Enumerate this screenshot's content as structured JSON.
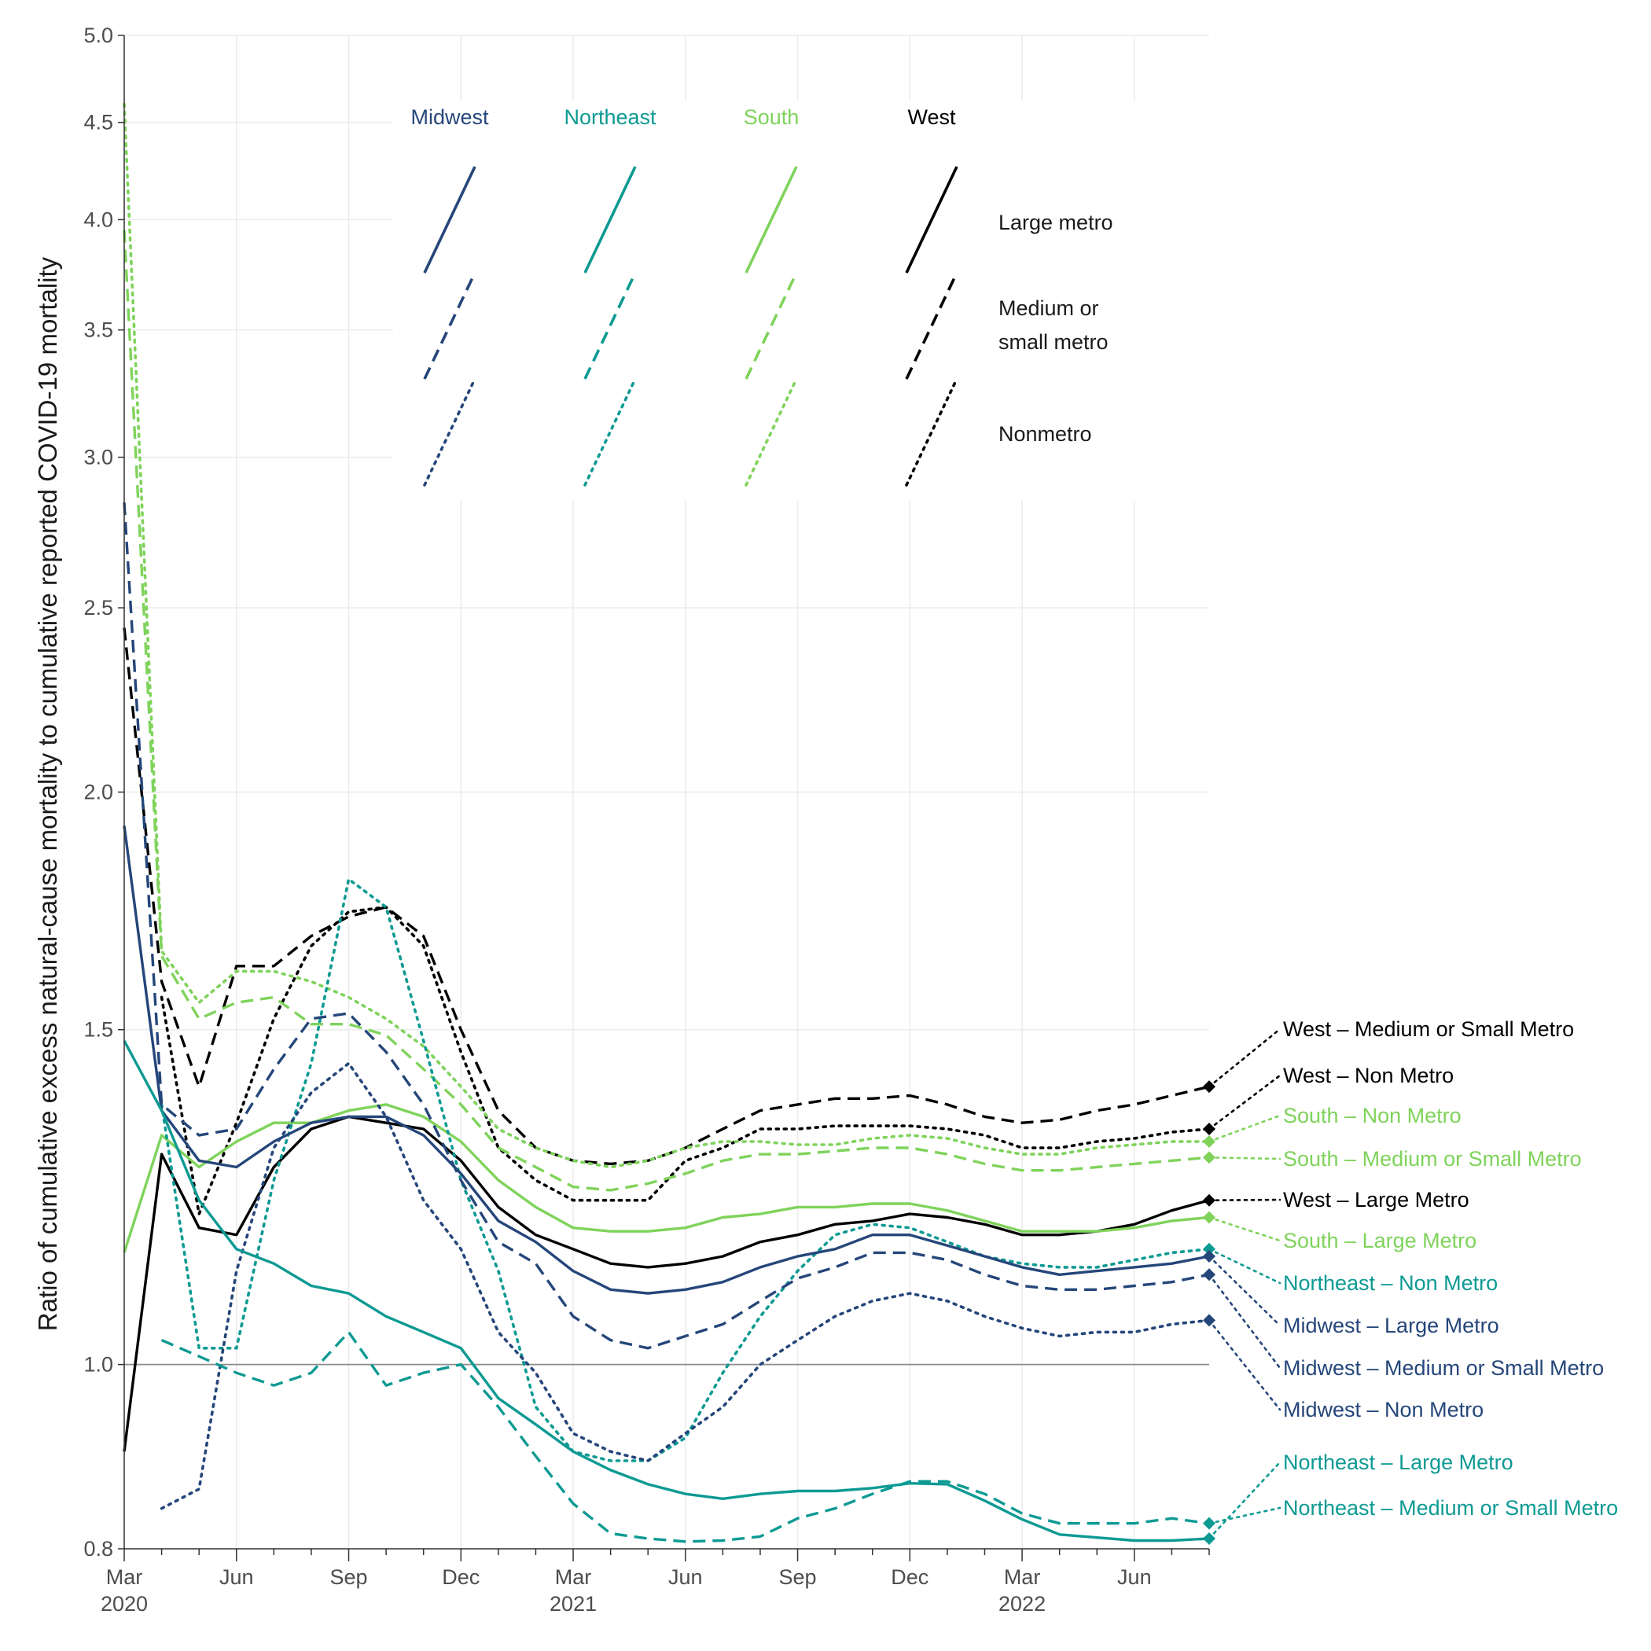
{
  "chart_data": {
    "type": "line",
    "title": "",
    "ylabel": "Ratio of cumulative excess natural-cause mortality to cumulative reported COVID-19 mortality",
    "xlabel": "",
    "y_scale": "log",
    "ylim": [
      0.8,
      5.0
    ],
    "y_ticks": [
      "0.8",
      "1.0",
      "1.5",
      "2.0",
      "2.5",
      "3.0",
      "3.5",
      "4.0",
      "4.5",
      "5.0"
    ],
    "y_tick_values": [
      0.8,
      1.0,
      1.5,
      2.0,
      2.5,
      3.0,
      3.5,
      4.0,
      4.5,
      5.0
    ],
    "reference_line": 1.0,
    "grid": true,
    "x_ticks": [
      {
        "month": 0,
        "label": "Mar",
        "year": "2020"
      },
      {
        "month": 3,
        "label": "Jun",
        "year": ""
      },
      {
        "month": 6,
        "label": "Sep",
        "year": ""
      },
      {
        "month": 9,
        "label": "Dec",
        "year": ""
      },
      {
        "month": 12,
        "label": "Mar",
        "year": "2021"
      },
      {
        "month": 15,
        "label": "Jun",
        "year": ""
      },
      {
        "month": 18,
        "label": "Sep",
        "year": ""
      },
      {
        "month": 21,
        "label": "Dec",
        "year": ""
      },
      {
        "month": 24,
        "label": "Mar",
        "year": "2022"
      },
      {
        "month": 27,
        "label": "Jun",
        "year": ""
      }
    ],
    "legend": {
      "placement": "top-center inside plot",
      "regions": [
        "Midwest",
        "Northeast",
        "South",
        "West"
      ],
      "types": [
        "Large metro",
        "Medium or\nsmall metro",
        "Nonmetro"
      ]
    },
    "colors": {
      "Midwest": "#25467a",
      "Northeast": "#0d9a93",
      "South": "#7fd35b",
      "West": "#000000"
    },
    "dash_styles": {
      "Large metro": "solid",
      "Medium or small metro": "dashed",
      "Nonmetro": "dotted"
    },
    "x_unit": "months since Mar 2020",
    "series": [
      {
        "name": "West – Medium or Small Metro",
        "region": "West",
        "type": "Medium or small metro",
        "start": 0,
        "values": [
          2.44,
          1.59,
          1.4,
          1.62,
          1.62,
          1.68,
          1.72,
          1.74,
          1.68,
          1.5,
          1.36,
          1.3,
          1.28,
          1.275,
          1.28,
          1.3,
          1.33,
          1.36,
          1.37,
          1.38,
          1.38,
          1.385,
          1.37,
          1.35,
          1.34,
          1.345,
          1.36,
          1.37,
          1.385,
          1.4
        ]
      },
      {
        "name": "West – Non Metro",
        "region": "West",
        "type": "Nonmetro",
        "start": 1,
        "values": [
          1.56,
          1.2,
          1.34,
          1.52,
          1.66,
          1.73,
          1.74,
          1.66,
          1.46,
          1.3,
          1.25,
          1.22,
          1.22,
          1.22,
          1.28,
          1.3,
          1.33,
          1.33,
          1.335,
          1.335,
          1.335,
          1.33,
          1.32,
          1.3,
          1.3,
          1.31,
          1.315,
          1.325,
          1.33
        ]
      },
      {
        "name": "South – Non Metro",
        "region": "South",
        "type": "Nonmetro",
        "start": 0,
        "values": [
          4.6,
          1.65,
          1.55,
          1.61,
          1.61,
          1.59,
          1.56,
          1.52,
          1.47,
          1.4,
          1.33,
          1.3,
          1.28,
          1.27,
          1.28,
          1.3,
          1.31,
          1.31,
          1.305,
          1.305,
          1.315,
          1.32,
          1.315,
          1.3,
          1.29,
          1.29,
          1.3,
          1.305,
          1.31,
          1.31
        ]
      },
      {
        "name": "South – Medium or Small Metro",
        "region": "South",
        "type": "Medium or small metro",
        "start": 0,
        "values": [
          3.95,
          1.64,
          1.52,
          1.55,
          1.56,
          1.51,
          1.51,
          1.49,
          1.43,
          1.37,
          1.3,
          1.27,
          1.24,
          1.235,
          1.245,
          1.26,
          1.28,
          1.29,
          1.29,
          1.295,
          1.3,
          1.3,
          1.29,
          1.275,
          1.265,
          1.265,
          1.27,
          1.275,
          1.28,
          1.285
        ]
      },
      {
        "name": "West – Large Metro",
        "region": "West",
        "type": "Large metro",
        "start": 0,
        "values": [
          0.9,
          1.29,
          1.18,
          1.17,
          1.27,
          1.33,
          1.35,
          1.34,
          1.33,
          1.28,
          1.21,
          1.17,
          1.15,
          1.13,
          1.125,
          1.13,
          1.14,
          1.16,
          1.17,
          1.185,
          1.19,
          1.2,
          1.195,
          1.185,
          1.17,
          1.17,
          1.175,
          1.185,
          1.205,
          1.22
        ]
      },
      {
        "name": "South – Large Metro",
        "region": "South",
        "type": "Large metro",
        "start": 0,
        "values": [
          1.145,
          1.32,
          1.27,
          1.31,
          1.34,
          1.34,
          1.36,
          1.37,
          1.35,
          1.31,
          1.25,
          1.21,
          1.18,
          1.175,
          1.175,
          1.18,
          1.195,
          1.2,
          1.21,
          1.21,
          1.215,
          1.215,
          1.205,
          1.19,
          1.175,
          1.175,
          1.175,
          1.18,
          1.19,
          1.195
        ]
      },
      {
        "name": "Northeast – Non Metro",
        "region": "Northeast",
        "type": "Nonmetro",
        "start": 1,
        "values": [
          1.37,
          1.02,
          1.02,
          1.25,
          1.44,
          1.8,
          1.74,
          1.48,
          1.25,
          1.12,
          0.95,
          0.9,
          0.89,
          0.89,
          0.915,
          0.99,
          1.06,
          1.12,
          1.17,
          1.185,
          1.18,
          1.16,
          1.14,
          1.13,
          1.125,
          1.125,
          1.135,
          1.145,
          1.15
        ]
      },
      {
        "name": "Midwest – Large Metro",
        "region": "Midwest",
        "type": "Large metro",
        "start": 0,
        "values": [
          1.92,
          1.36,
          1.28,
          1.27,
          1.31,
          1.34,
          1.35,
          1.35,
          1.32,
          1.26,
          1.19,
          1.16,
          1.12,
          1.095,
          1.09,
          1.095,
          1.105,
          1.125,
          1.14,
          1.15,
          1.17,
          1.17,
          1.155,
          1.14,
          1.125,
          1.115,
          1.12,
          1.125,
          1.13,
          1.14
        ]
      },
      {
        "name": "Midwest – Medium or Small Metro",
        "region": "Midwest",
        "type": "Medium or small metro",
        "start": 0,
        "values": [
          2.84,
          1.37,
          1.32,
          1.33,
          1.43,
          1.52,
          1.53,
          1.46,
          1.37,
          1.25,
          1.16,
          1.13,
          1.06,
          1.03,
          1.02,
          1.035,
          1.05,
          1.08,
          1.11,
          1.125,
          1.145,
          1.145,
          1.135,
          1.115,
          1.1,
          1.095,
          1.095,
          1.1,
          1.105,
          1.115
        ]
      },
      {
        "name": "Midwest – Non Metro",
        "region": "Midwest",
        "type": "Nonmetro",
        "start": 1,
        "values": [
          0.84,
          0.86,
          1.12,
          1.3,
          1.39,
          1.44,
          1.35,
          1.22,
          1.15,
          1.04,
          0.99,
          0.92,
          0.9,
          0.89,
          0.92,
          0.95,
          1.0,
          1.03,
          1.06,
          1.08,
          1.09,
          1.08,
          1.06,
          1.045,
          1.035,
          1.04,
          1.04,
          1.05,
          1.055
        ]
      },
      {
        "name": "Northeast – Large Metro",
        "region": "Northeast",
        "type": "Large metro",
        "start": 0,
        "values": [
          1.48,
          1.36,
          1.22,
          1.15,
          1.13,
          1.1,
          1.09,
          1.06,
          1.04,
          1.02,
          0.96,
          0.93,
          0.9,
          0.88,
          0.865,
          0.855,
          0.85,
          0.855,
          0.858,
          0.858,
          0.861,
          0.866,
          0.865,
          0.848,
          0.829,
          0.814,
          0.811,
          0.808,
          0.808,
          0.81
        ]
      },
      {
        "name": "Northeast – Medium or Small Metro",
        "region": "Northeast",
        "type": "Medium or small metro",
        "start": 1,
        "values": [
          1.03,
          1.01,
          0.99,
          0.975,
          0.99,
          1.04,
          0.975,
          0.99,
          1.0,
          0.95,
          0.895,
          0.845,
          0.815,
          0.81,
          0.807,
          0.808,
          0.812,
          0.83,
          0.84,
          0.855,
          0.868,
          0.868,
          0.855,
          0.835,
          0.825,
          0.825,
          0.825,
          0.83,
          0.825
        ]
      }
    ]
  }
}
